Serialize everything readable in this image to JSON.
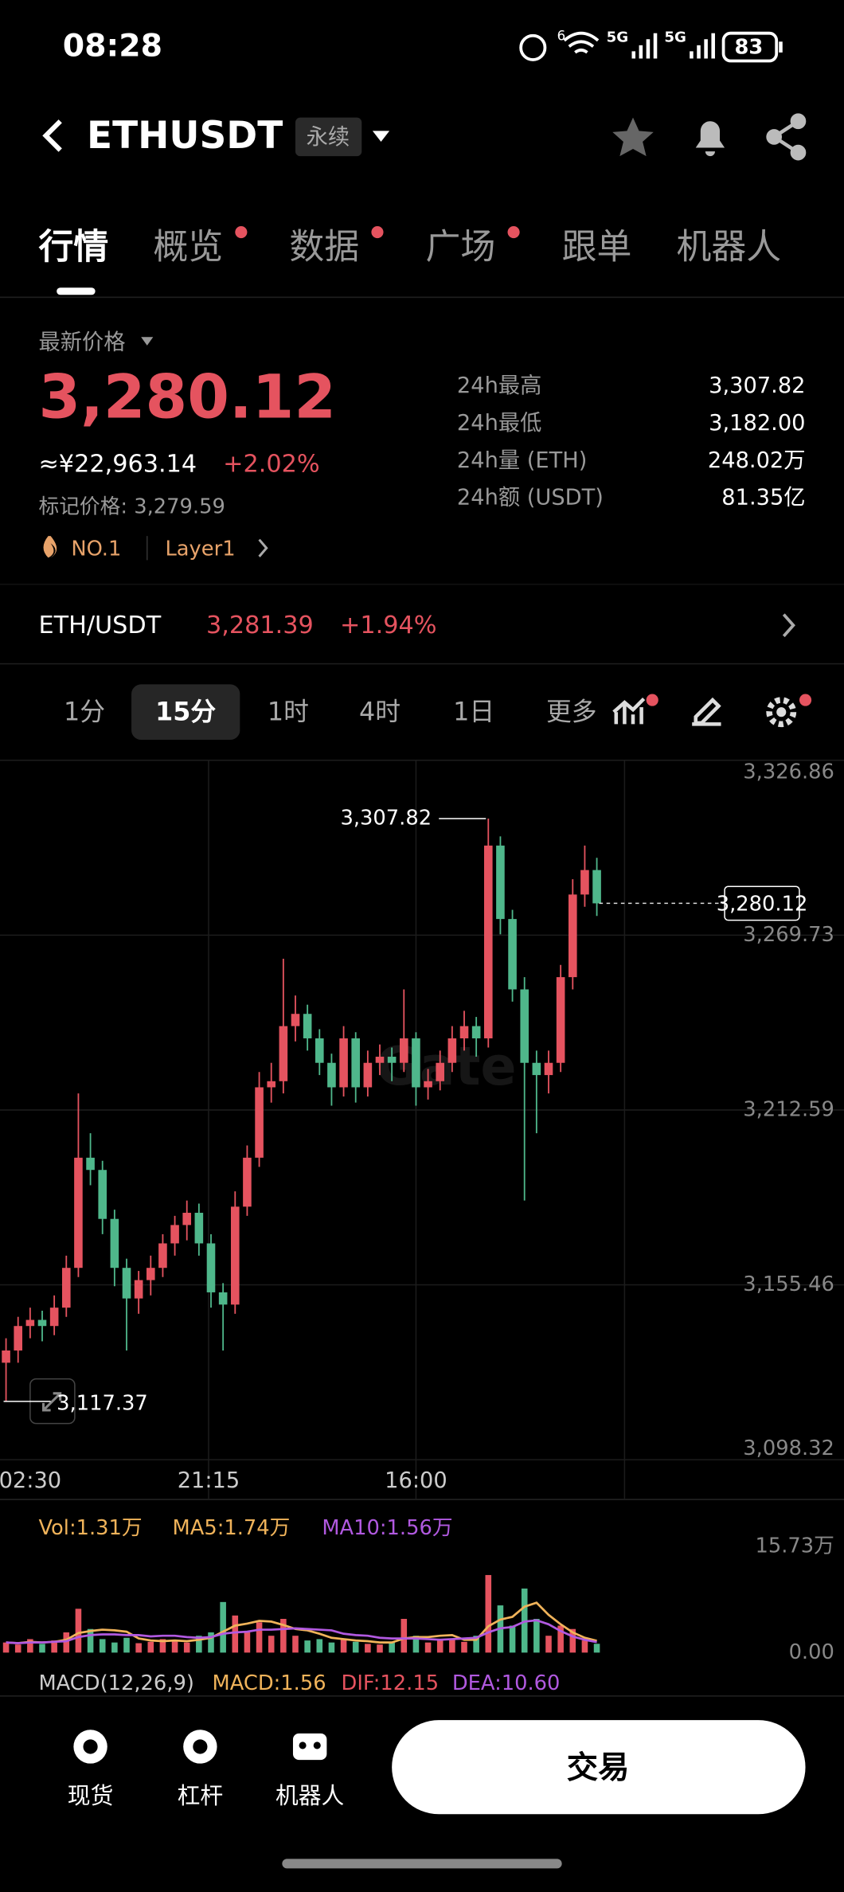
{
  "status_bar": {
    "time": "08:28",
    "wifi_badge": "6",
    "network": [
      "5G",
      "5G"
    ],
    "battery": "83"
  },
  "header": {
    "symbol": "ETHUSDT",
    "contract": "永续"
  },
  "tabs": {
    "items": [
      "行情",
      "概览",
      "数据",
      "广场",
      "跟单",
      "机器人"
    ],
    "active": 0,
    "dots": [
      false,
      true,
      true,
      true,
      false,
      false
    ]
  },
  "ticker": {
    "price_label": "最新价格",
    "price": "3,280.12",
    "cny": "≈¥22,963.14",
    "change": "+2.02%",
    "mark_price": "标记价格: 3,279.59",
    "tags": [
      "NO.1",
      "Layer1"
    ],
    "stats": [
      {
        "label": "24h最高",
        "value": "3,307.82"
      },
      {
        "label": "24h最低",
        "value": "3,182.00"
      },
      {
        "label": "24h量 (ETH)",
        "value": "248.02万"
      },
      {
        "label": "24h额 (USDT)",
        "value": "81.35亿"
      }
    ]
  },
  "spot": {
    "pair": "ETH/USDT",
    "price": "3,281.39",
    "change": "+1.94%"
  },
  "intervals": {
    "items": [
      "1分",
      "15分",
      "1时",
      "4时",
      "1日",
      "更多"
    ],
    "active": 1
  },
  "kline": {
    "type": "candlestick",
    "watermark": "Gate",
    "up_color": "#e5535f",
    "down_color": "#4fb78b",
    "ylim": [
      3098.32,
      3326.86
    ],
    "yticks": [
      {
        "value": 3326.86,
        "label": "3,326.86"
      },
      {
        "value": 3269.73,
        "label": "3,269.73"
      },
      {
        "value": 3212.59,
        "label": "3,212.59"
      },
      {
        "value": 3155.46,
        "label": "3,155.46"
      },
      {
        "value": 3098.32,
        "label": "3,098.32"
      }
    ],
    "x_labels": [
      "02:30",
      "21:15",
      "16:00"
    ],
    "high_marker": {
      "value": 3307.82,
      "label": "3,307.82"
    },
    "low_marker": {
      "value": 3117.37,
      "label": "3,117.37"
    },
    "last_price": {
      "value": 3280.12,
      "label": "3,280.12"
    },
    "candles": [
      [
        3130,
        3138,
        3117.37,
        3134
      ],
      [
        3134,
        3145,
        3130,
        3142
      ],
      [
        3142,
        3148,
        3138,
        3144
      ],
      [
        3144,
        3147,
        3137,
        3142
      ],
      [
        3142,
        3152,
        3139,
        3148
      ],
      [
        3148,
        3165,
        3145,
        3161
      ],
      [
        3161,
        3218,
        3158,
        3197
      ],
      [
        3197,
        3205,
        3188,
        3193
      ],
      [
        3193,
        3196,
        3172,
        3177
      ],
      [
        3177,
        3180,
        3155,
        3161
      ],
      [
        3161,
        3164,
        3134,
        3151
      ],
      [
        3151,
        3160,
        3146,
        3157
      ],
      [
        3157,
        3165,
        3152,
        3161
      ],
      [
        3161,
        3172,
        3158,
        3169
      ],
      [
        3169,
        3178,
        3165,
        3175
      ],
      [
        3175,
        3183,
        3170,
        3179
      ],
      [
        3179,
        3182,
        3165,
        3169
      ],
      [
        3169,
        3172,
        3148,
        3153
      ],
      [
        3153,
        3156,
        3134,
        3149
      ],
      [
        3149,
        3186,
        3146,
        3181
      ],
      [
        3181,
        3201,
        3178,
        3197
      ],
      [
        3197,
        3225,
        3194,
        3220
      ],
      [
        3220,
        3228,
        3215,
        3222
      ],
      [
        3222,
        3262,
        3218,
        3240
      ],
      [
        3240,
        3250,
        3235,
        3244
      ],
      [
        3244,
        3247,
        3232,
        3236
      ],
      [
        3236,
        3239,
        3224,
        3228
      ],
      [
        3228,
        3231,
        3214,
        3220
      ],
      [
        3220,
        3240,
        3217,
        3236
      ],
      [
        3236,
        3238,
        3215,
        3220
      ],
      [
        3220,
        3232,
        3217,
        3228
      ],
      [
        3228,
        3234,
        3224,
        3230
      ],
      [
        3230,
        3233,
        3222,
        3228
      ],
      [
        3228,
        3252,
        3225,
        3236
      ],
      [
        3236,
        3238,
        3214,
        3220
      ],
      [
        3220,
        3226,
        3216,
        3222
      ],
      [
        3222,
        3232,
        3219,
        3228
      ],
      [
        3228,
        3240,
        3225,
        3236
      ],
      [
        3236,
        3245,
        3232,
        3240
      ],
      [
        3240,
        3243,
        3230,
        3236
      ],
      [
        3236,
        3307.82,
        3233,
        3299
      ],
      [
        3299,
        3302,
        3270,
        3275
      ],
      [
        3275,
        3278,
        3248,
        3252
      ],
      [
        3252,
        3256,
        3183,
        3228
      ],
      [
        3228,
        3232,
        3205,
        3224
      ],
      [
        3224,
        3232,
        3218,
        3228
      ],
      [
        3228,
        3260,
        3225,
        3256
      ],
      [
        3256,
        3288,
        3252,
        3283
      ],
      [
        3283,
        3299,
        3279,
        3291
      ],
      [
        3291,
        3295,
        3276,
        3280.12
      ]
    ]
  },
  "volume": {
    "legend": [
      "Vol:1.31万",
      "MA5:1.74万",
      "MA10:1.56万"
    ],
    "legend_colors": [
      "#f0b35a",
      "#f0b35a",
      "#b159e0"
    ],
    "ylim": [
      0,
      15.73
    ],
    "yticks": [
      {
        "value": 15.73,
        "label": "15.73万"
      },
      {
        "value": 0,
        "label": "0.00"
      }
    ],
    "values": [
      1.5,
      1.2,
      2.0,
      1.3,
      1.8,
      3.0,
      6.5,
      3.5,
      2.0,
      1.5,
      2.2,
      1.4,
      1.6,
      2.0,
      1.8,
      1.5,
      2.5,
      3.0,
      7.5,
      5.5,
      3.0,
      4.5,
      2.5,
      5.0,
      2.5,
      1.8,
      2.0,
      1.5,
      2.0,
      1.6,
      1.3,
      1.2,
      1.5,
      5.0,
      2.5,
      1.5,
      1.8,
      2.0,
      1.6,
      2.5,
      11.5,
      7.0,
      4.0,
      9.5,
      5.0,
      2.5,
      4.0,
      3.5,
      1.8,
      1.31
    ],
    "series": [
      {
        "name": "MA5",
        "color": "#f0b35a",
        "values": [
          1.5,
          1.4,
          1.6,
          1.5,
          1.6,
          1.9,
          2.9,
          3.2,
          3.4,
          3.3,
          3.1,
          2.1,
          1.8,
          1.7,
          1.8,
          1.7,
          1.9,
          2.2,
          3.1,
          4.0,
          4.3,
          4.7,
          4.6,
          4.1,
          3.5,
          3.3,
          2.8,
          2.2,
          2.0,
          1.8,
          1.7,
          1.5,
          1.5,
          2.1,
          2.3,
          2.3,
          2.5,
          2.6,
          1.9,
          1.9,
          3.9,
          4.9,
          5.3,
          6.8,
          7.4,
          5.6,
          4.2,
          3.0,
          2.2,
          1.74
        ]
      },
      {
        "name": "MA10",
        "color": "#b159e0",
        "values": [
          1.5,
          1.4,
          1.5,
          1.5,
          1.6,
          1.7,
          2.3,
          2.6,
          2.7,
          2.7,
          2.6,
          2.6,
          2.4,
          2.5,
          2.5,
          2.3,
          2.2,
          2.3,
          2.8,
          3.0,
          3.1,
          3.4,
          3.4,
          3.5,
          3.6,
          3.5,
          3.4,
          3.3,
          2.8,
          2.6,
          2.5,
          2.2,
          2.1,
          2.1,
          2.1,
          2.0,
          1.9,
          2.0,
          2.1,
          2.2,
          3.0,
          3.6,
          3.8,
          4.6,
          4.8,
          4.2,
          3.2,
          2.4,
          1.9,
          1.56
        ]
      }
    ]
  },
  "macd": {
    "title": "MACD(12,26,9)",
    "macd": "MACD:1.56",
    "dif": "DIF:12.15",
    "dea": "DEA:10.60"
  },
  "nav": {
    "items": [
      "现货",
      "杠杆",
      "机器人"
    ],
    "action": "交易"
  }
}
